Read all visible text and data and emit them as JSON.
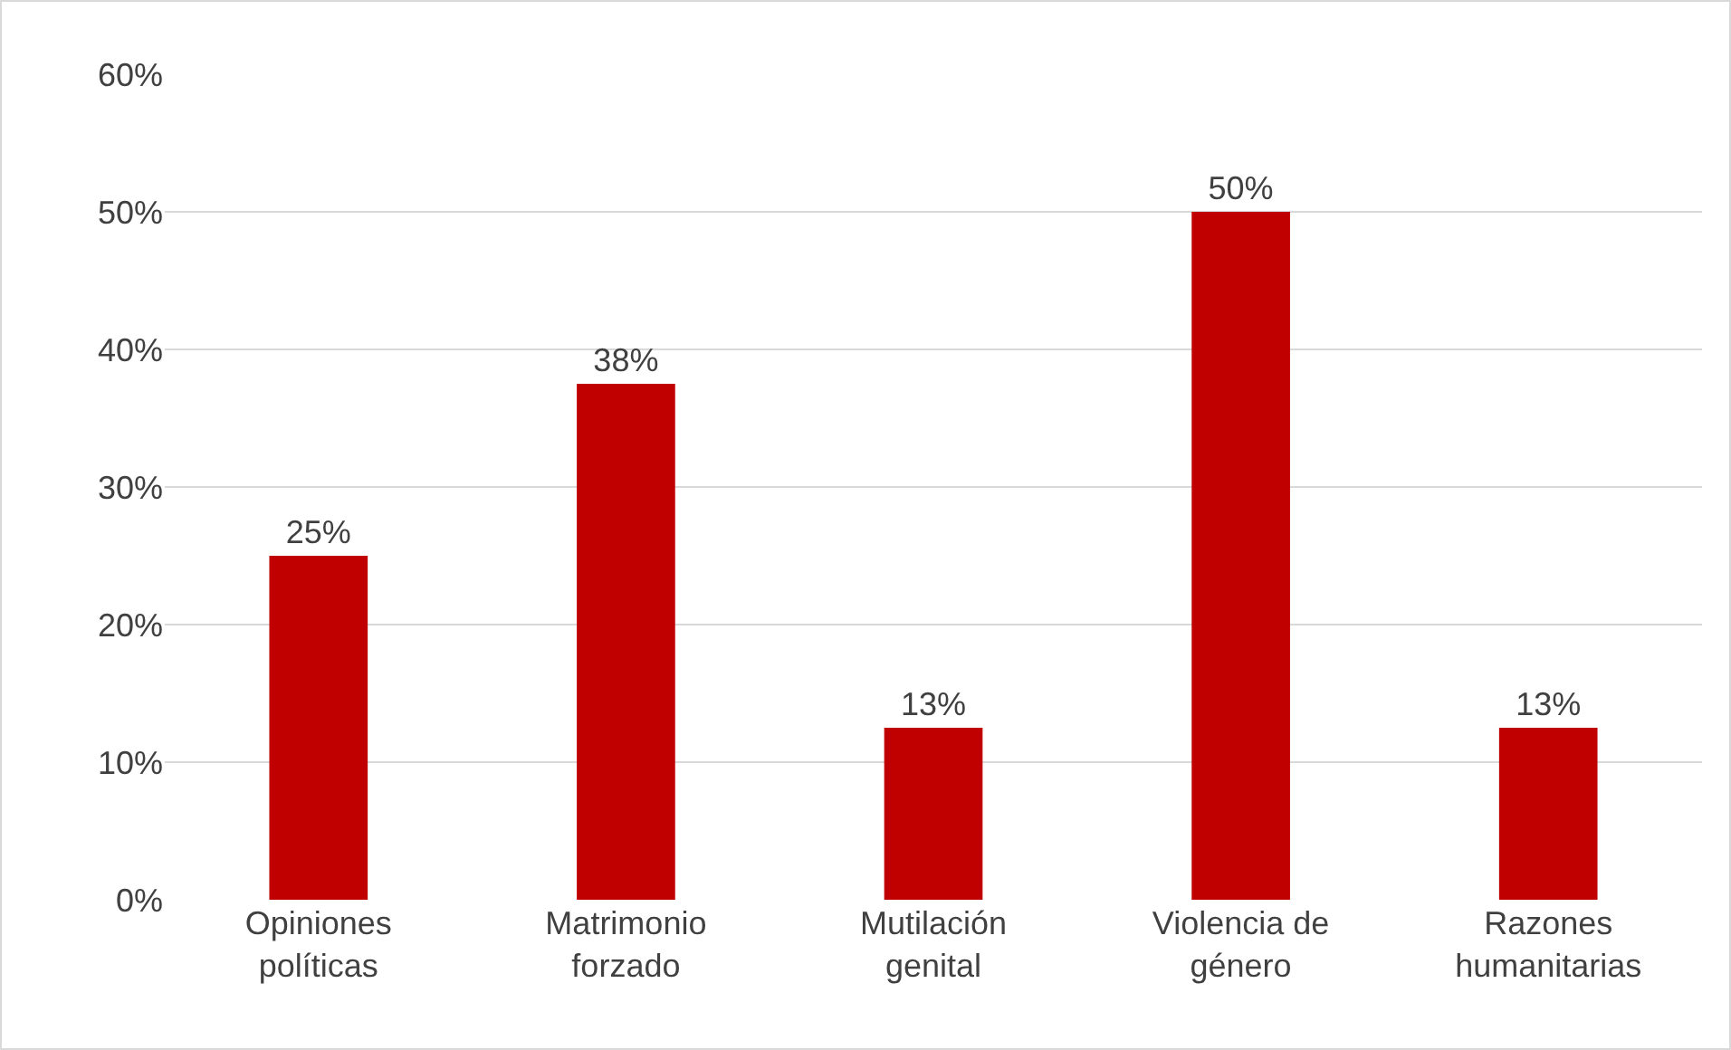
{
  "chart_data": {
    "type": "bar",
    "categories": [
      "Opiniones políticas",
      "Matrimonio forzado",
      "Mutilación genital",
      "Violencia de género",
      "Razones humanitarias"
    ],
    "values": [
      25,
      37.5,
      12.5,
      50,
      12.5
    ],
    "value_labels": [
      "25%",
      "38%",
      "13%",
      "50%",
      "13%"
    ],
    "color": "#c00000",
    "ylim": [
      0,
      60
    ],
    "yticks": [
      {
        "value": 0,
        "label": "0%"
      },
      {
        "value": 10,
        "label": "10%"
      },
      {
        "value": 20,
        "label": "20%"
      },
      {
        "value": 30,
        "label": "30%"
      },
      {
        "value": 40,
        "label": "40%"
      },
      {
        "value": 50,
        "label": "50%"
      },
      {
        "value": 60,
        "label": "60%"
      }
    ],
    "grid": "y"
  }
}
